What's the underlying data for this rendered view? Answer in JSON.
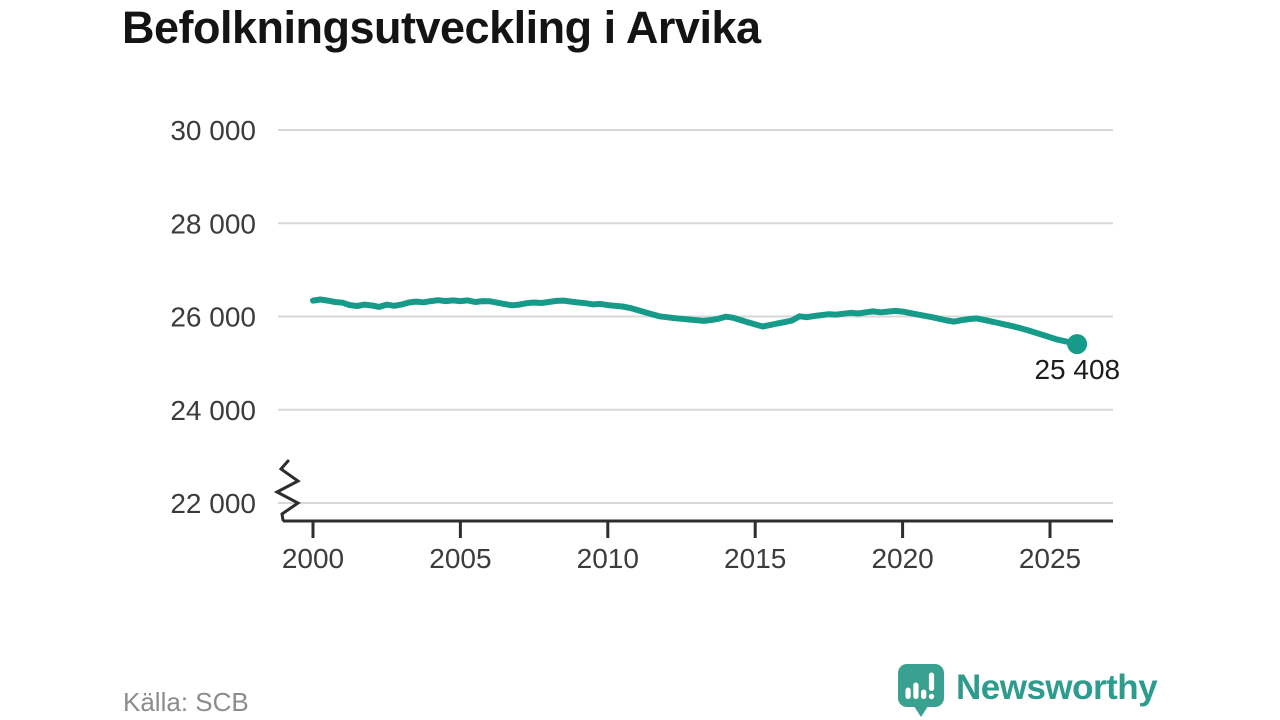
{
  "header": {
    "title": "Befolkningsutveckling i Arvika"
  },
  "chart_data": {
    "type": "line",
    "title": "Befolkningsutveckling i Arvika",
    "xlabel": "",
    "ylabel": "",
    "x_ticks": [
      2000,
      2005,
      2010,
      2015,
      2020,
      2025
    ],
    "y_ticks": [
      22000,
      24000,
      26000,
      28000,
      30000
    ],
    "y_tick_labels": [
      "22 000",
      "24 000",
      "26 000",
      "28 000",
      "30 000"
    ],
    "x_range": [
      2000,
      2027.1
    ],
    "y_range": [
      22000,
      30000
    ],
    "axis_break_at_bottom": true,
    "grid": "horizontal",
    "legend": "none",
    "line_color": "#169b8b",
    "end_label": "25 408",
    "final_value": 25408,
    "series": [
      {
        "name": "Befolkning i Arvika",
        "points": [
          [
            2000,
            26340
          ],
          [
            2000.25,
            26365
          ],
          [
            2000.5,
            26340
          ],
          [
            2000.75,
            26310
          ],
          [
            2001,
            26295
          ],
          [
            2001.25,
            26245
          ],
          [
            2001.5,
            26225
          ],
          [
            2001.75,
            26255
          ],
          [
            2002,
            26235
          ],
          [
            2002.25,
            26205
          ],
          [
            2002.5,
            26255
          ],
          [
            2002.75,
            26230
          ],
          [
            2003,
            26255
          ],
          [
            2003.25,
            26300
          ],
          [
            2003.5,
            26320
          ],
          [
            2003.75,
            26305
          ],
          [
            2004,
            26330
          ],
          [
            2004.25,
            26350
          ],
          [
            2004.5,
            26330
          ],
          [
            2004.75,
            26345
          ],
          [
            2005,
            26330
          ],
          [
            2005.25,
            26345
          ],
          [
            2005.5,
            26310
          ],
          [
            2005.75,
            26330
          ],
          [
            2006,
            26325
          ],
          [
            2006.25,
            26295
          ],
          [
            2006.5,
            26265
          ],
          [
            2006.75,
            26240
          ],
          [
            2007,
            26255
          ],
          [
            2007.25,
            26285
          ],
          [
            2007.5,
            26300
          ],
          [
            2007.75,
            26290
          ],
          [
            2008,
            26310
          ],
          [
            2008.25,
            26335
          ],
          [
            2008.5,
            26340
          ],
          [
            2008.75,
            26320
          ],
          [
            2009,
            26300
          ],
          [
            2009.25,
            26285
          ],
          [
            2009.5,
            26260
          ],
          [
            2009.75,
            26270
          ],
          [
            2010,
            26245
          ],
          [
            2010.25,
            26230
          ],
          [
            2010.5,
            26215
          ],
          [
            2010.75,
            26185
          ],
          [
            2011,
            26140
          ],
          [
            2011.25,
            26095
          ],
          [
            2011.5,
            26050
          ],
          [
            2011.75,
            26005
          ],
          [
            2012,
            25985
          ],
          [
            2012.25,
            25965
          ],
          [
            2012.5,
            25950
          ],
          [
            2012.75,
            25935
          ],
          [
            2013,
            25920
          ],
          [
            2013.25,
            25905
          ],
          [
            2013.5,
            25925
          ],
          [
            2013.75,
            25950
          ],
          [
            2014,
            25995
          ],
          [
            2014.25,
            25975
          ],
          [
            2014.5,
            25925
          ],
          [
            2014.75,
            25875
          ],
          [
            2015,
            25830
          ],
          [
            2015.25,
            25785
          ],
          [
            2015.5,
            25815
          ],
          [
            2015.75,
            25850
          ],
          [
            2016,
            25880
          ],
          [
            2016.25,
            25915
          ],
          [
            2016.5,
            26005
          ],
          [
            2016.75,
            25985
          ],
          [
            2017,
            26010
          ],
          [
            2017.25,
            26030
          ],
          [
            2017.5,
            26050
          ],
          [
            2017.75,
            26040
          ],
          [
            2018,
            26060
          ],
          [
            2018.25,
            26080
          ],
          [
            2018.5,
            26065
          ],
          [
            2018.75,
            26090
          ],
          [
            2019,
            26110
          ],
          [
            2019.25,
            26090
          ],
          [
            2019.5,
            26105
          ],
          [
            2019.75,
            26120
          ],
          [
            2020,
            26105
          ],
          [
            2020.25,
            26075
          ],
          [
            2020.5,
            26045
          ],
          [
            2020.75,
            26015
          ],
          [
            2021,
            25985
          ],
          [
            2021.25,
            25950
          ],
          [
            2021.5,
            25915
          ],
          [
            2021.75,
            25890
          ],
          [
            2022,
            25920
          ],
          [
            2022.25,
            25945
          ],
          [
            2022.5,
            25960
          ],
          [
            2022.75,
            25930
          ],
          [
            2023,
            25895
          ],
          [
            2023.25,
            25860
          ],
          [
            2023.5,
            25825
          ],
          [
            2023.75,
            25790
          ],
          [
            2024,
            25750
          ],
          [
            2024.25,
            25705
          ],
          [
            2024.5,
            25655
          ],
          [
            2024.75,
            25605
          ],
          [
            2025,
            25555
          ],
          [
            2025.25,
            25505
          ],
          [
            2025.5,
            25470
          ],
          [
            2025.75,
            25435
          ],
          [
            2025.92,
            25408
          ]
        ]
      }
    ]
  },
  "footer": {
    "source": "Källa: SCB",
    "brand": "Newsworthy"
  },
  "colors": {
    "accent": "#169b8b",
    "brand": "#2e9c8d",
    "logo_fill": "#3aa191",
    "grid": "#d8d8d8",
    "axis": "#2e2e2e",
    "title_text": "#141414",
    "muted_text": "#8c8c8c"
  }
}
